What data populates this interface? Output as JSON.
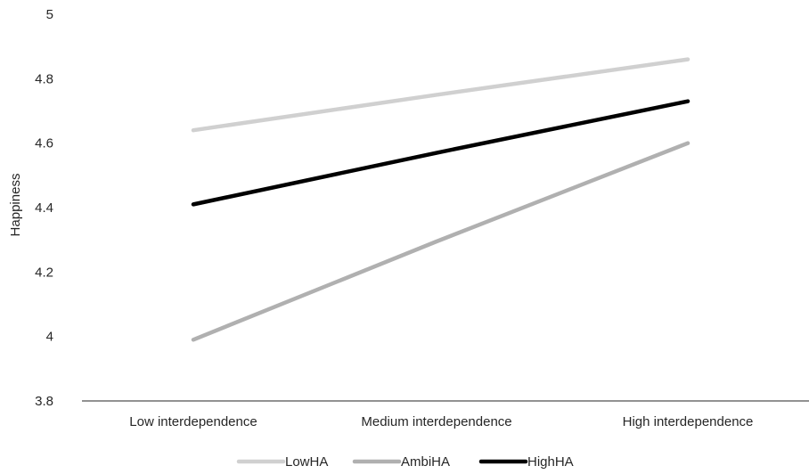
{
  "chart_data": {
    "type": "line",
    "categories": [
      "Low interdependence",
      "Medium interdependence",
      "High interdependence"
    ],
    "series": [
      {
        "name": "LowHA",
        "values": [
          4.64,
          4.75,
          4.86
        ],
        "color": "#d0d0d0"
      },
      {
        "name": "AmbiHA",
        "values": [
          3.99,
          4.295,
          4.6
        ],
        "color": "#b0b0b0"
      },
      {
        "name": "HighHA",
        "values": [
          4.41,
          4.57,
          4.73
        ],
        "color": "#000000"
      }
    ],
    "yticks": [
      "3.8",
      "4",
      "4.2",
      "4.4",
      "4.6",
      "4.8",
      "5"
    ],
    "ylim": [
      3.8,
      5.0
    ],
    "ylabel": "Happiness",
    "xlabel": "",
    "title": "",
    "grid": false,
    "legend_position": "bottom",
    "axis_color": "#262626"
  }
}
